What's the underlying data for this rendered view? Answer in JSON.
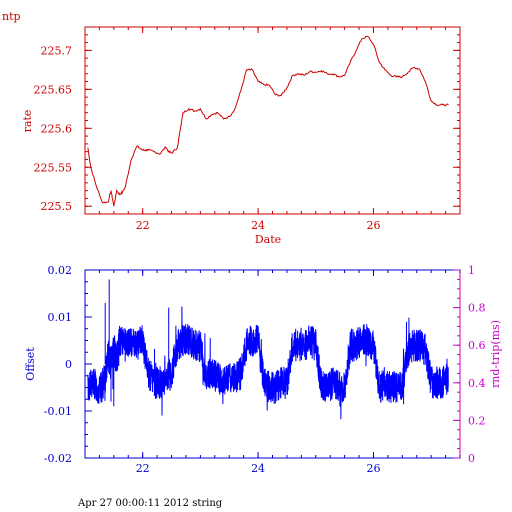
{
  "footer": "Apr 27 00:00:11 2012 string",
  "colors": {
    "rate": "#cc0000",
    "offset": "#0000cc",
    "rtt": "#cc00cc"
  },
  "chart_data": [
    {
      "type": "line",
      "title": "ntp",
      "xlabel": "Date",
      "ylabel": "rate",
      "xlim": [
        21.0,
        27.5
      ],
      "ylim": [
        225.49,
        225.73
      ],
      "xticks": [
        22,
        24,
        26
      ],
      "yticks": [
        225.5,
        225.55,
        225.6,
        225.65,
        225.7
      ],
      "ytick_labels": [
        "225.5",
        "225.55",
        "225.6",
        "225.65",
        "225.7"
      ],
      "series": [
        {
          "x": [
            21.05,
            21.1,
            21.2,
            21.3,
            21.4,
            21.45,
            21.5,
            21.55,
            21.6,
            21.65,
            21.7,
            21.8,
            21.9,
            22.0,
            22.05,
            22.1,
            22.2,
            22.3,
            22.4,
            22.45,
            22.5,
            22.6,
            22.7,
            22.8,
            22.9,
            23.0,
            23.1,
            23.2,
            23.3,
            23.4,
            23.5,
            23.6,
            23.7,
            23.8,
            23.9,
            24.0,
            24.1,
            24.2,
            24.3,
            24.4,
            24.5,
            24.6,
            24.7,
            24.8,
            24.9,
            25.0,
            25.1,
            25.2,
            25.3,
            25.4,
            25.5,
            25.6,
            25.7,
            25.8,
            25.9,
            26.0,
            26.1,
            26.2,
            26.3,
            26.4,
            26.5,
            26.6,
            26.7,
            26.8,
            26.9,
            27.0,
            27.1,
            27.2,
            27.3
          ],
          "y": [
            225.575,
            225.55,
            225.525,
            225.505,
            225.505,
            225.52,
            225.5,
            225.52,
            225.515,
            225.518,
            225.525,
            225.56,
            225.577,
            225.572,
            225.572,
            225.572,
            225.57,
            225.567,
            225.576,
            225.57,
            225.568,
            225.575,
            225.62,
            225.625,
            225.622,
            225.625,
            225.612,
            225.618,
            225.62,
            225.612,
            225.615,
            225.625,
            225.648,
            225.675,
            225.675,
            225.66,
            225.656,
            225.655,
            225.643,
            225.642,
            225.652,
            225.668,
            225.67,
            225.668,
            225.673,
            225.672,
            225.674,
            225.67,
            225.67,
            225.666,
            225.668,
            225.685,
            225.7,
            225.715,
            225.718,
            225.708,
            225.685,
            225.675,
            225.668,
            225.666,
            225.666,
            225.672,
            225.678,
            225.676,
            225.66,
            225.635,
            225.63,
            225.63,
            225.63
          ]
        }
      ]
    },
    {
      "type": "line",
      "xlim": [
        21.0,
        27.5
      ],
      "xticks": [
        22,
        24,
        26
      ],
      "ylabel_left": "Offset",
      "ylabel_right": "rnd-trip(ms)",
      "ylim_left": [
        -0.02,
        0.02
      ],
      "ylim_right": [
        0,
        1
      ],
      "yticks_left": [
        -0.02,
        -0.01,
        0,
        0.01,
        0.02
      ],
      "ytick_labels_left": [
        "-0.02",
        "-0.01",
        "0",
        "0.01",
        "0.02"
      ],
      "yticks_right": [
        0,
        0.2,
        0.4,
        0.6,
        0.8,
        1
      ],
      "ytick_labels_right": [
        "0",
        "0.2",
        "0.4",
        "0.6",
        "0.8",
        "1"
      ],
      "series": [
        {
          "x": [
            21.05,
            21.15,
            21.25,
            21.35,
            21.4,
            21.45,
            21.5,
            21.55,
            21.6,
            21.7,
            21.8,
            21.9,
            22.0,
            22.1,
            22.2,
            22.3,
            22.4,
            22.5,
            22.6,
            22.7,
            22.8,
            22.9,
            23.0,
            23.1,
            23.2,
            23.3,
            23.4,
            23.5,
            23.6,
            23.7,
            23.8,
            23.9,
            24.0,
            24.1,
            24.2,
            24.3,
            24.4,
            24.5,
            24.6,
            24.7,
            24.8,
            24.9,
            25.0,
            25.1,
            25.2,
            25.3,
            25.4,
            25.5,
            25.6,
            25.7,
            25.8,
            25.9,
            26.0,
            26.1,
            26.2,
            26.3,
            26.4,
            26.5,
            26.6,
            26.7,
            26.8,
            26.9,
            27.0,
            27.1,
            27.2,
            27.3
          ],
          "y": [
            -0.005,
            -0.004,
            -0.006,
            -0.003,
            0.002,
            0.0,
            0.003,
            0.001,
            0.005,
            0.004,
            0.005,
            0.004,
            0.005,
            -0.002,
            -0.004,
            -0.004,
            -0.003,
            -0.002,
            0.004,
            0.005,
            0.005,
            0.004,
            0.004,
            -0.003,
            -0.002,
            -0.003,
            -0.004,
            -0.003,
            -0.003,
            -0.002,
            0.004,
            0.005,
            0.005,
            -0.004,
            -0.005,
            -0.005,
            -0.004,
            -0.004,
            0.004,
            0.004,
            0.004,
            0.005,
            0.004,
            -0.005,
            -0.005,
            -0.004,
            -0.005,
            -0.005,
            0.004,
            0.004,
            0.005,
            0.005,
            0.004,
            -0.005,
            -0.004,
            -0.005,
            -0.005,
            -0.004,
            0.003,
            0.004,
            0.004,
            0.003,
            -0.004,
            -0.004,
            -0.004,
            -0.003
          ]
        }
      ]
    }
  ]
}
